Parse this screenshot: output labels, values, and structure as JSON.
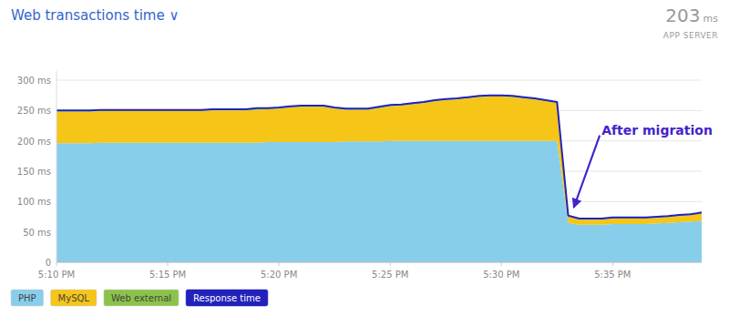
{
  "chart_data": {
    "type": "area",
    "stacked": true,
    "title": "Web transactions time  ∨",
    "note_value": 203,
    "note_unit": "ms",
    "note_label": "APP SERVER",
    "x": [
      0,
      1,
      2,
      3,
      4,
      5,
      6,
      7,
      8,
      9,
      10,
      11,
      12,
      13,
      14,
      15,
      16,
      17,
      18,
      19,
      20,
      21,
      22,
      23,
      24,
      25,
      26,
      27,
      28,
      29,
      30,
      31,
      32,
      33,
      34,
      35,
      36,
      37,
      38,
      39,
      40,
      41,
      42,
      43,
      44,
      45,
      46,
      47,
      48,
      49,
      50,
      51,
      52,
      53,
      54,
      55,
      56,
      57,
      58
    ],
    "xlim": [
      0,
      58
    ],
    "xticks": [
      {
        "value": 0,
        "label": "5:10 PM"
      },
      {
        "value": 10,
        "label": "5:15 PM"
      },
      {
        "value": 20,
        "label": "5:20 PM"
      },
      {
        "value": 30,
        "label": "5:25 PM"
      },
      {
        "value": 40,
        "label": "5:30 PM"
      },
      {
        "value": 50,
        "label": "5:35 PM"
      }
    ],
    "ylim": [
      0,
      315
    ],
    "yticks": [
      0,
      {
        "value": 50,
        "label": "50 ms"
      },
      {
        "value": 100,
        "label": "100 ms"
      },
      {
        "value": 150,
        "label": "150 ms"
      },
      {
        "value": 200,
        "label": "200 ms"
      },
      {
        "value": 250,
        "label": "250 ms"
      },
      {
        "value": 300,
        "label": "300 ms"
      }
    ],
    "grid": true,
    "legend": "bottom",
    "series": [
      {
        "name": "PHP",
        "color": "#87CEEB",
        "values": [
          196,
          196,
          196,
          196,
          197,
          197,
          197,
          197,
          197,
          197,
          197,
          197,
          197,
          197,
          197,
          197,
          197,
          197,
          197,
          198,
          198,
          198,
          198,
          198,
          198,
          198,
          199,
          199,
          199,
          199,
          200,
          200,
          200,
          200,
          200,
          200,
          200,
          200,
          200,
          200,
          200,
          200,
          200,
          200,
          200,
          200,
          65,
          62,
          62,
          62,
          63,
          63,
          63,
          63,
          64,
          65,
          66,
          67,
          68
        ]
      },
      {
        "name": "MySQL",
        "color": "#F5C518",
        "values": [
          52,
          52,
          52,
          52,
          52,
          52,
          52,
          52,
          52,
          52,
          52,
          52,
          52,
          52,
          53,
          53,
          53,
          53,
          54,
          54,
          55,
          57,
          58,
          58,
          58,
          55,
          52,
          52,
          52,
          55,
          57,
          58,
          60,
          62,
          65,
          67,
          68,
          70,
          72,
          73,
          73,
          72,
          70,
          68,
          65,
          62,
          10,
          8,
          8,
          8,
          9,
          9,
          9,
          9,
          9,
          10,
          10,
          11,
          12
        ]
      },
      {
        "name": "Web external",
        "color": "#8BC34A",
        "values": [
          2,
          2,
          2,
          2,
          2,
          2,
          2,
          2,
          2,
          2,
          2,
          2,
          2,
          2,
          2,
          2,
          2,
          2,
          2,
          2,
          2,
          2,
          2,
          2,
          2,
          2,
          2,
          2,
          2,
          2,
          2,
          2,
          2,
          2,
          2,
          2,
          2,
          2,
          2,
          2,
          2,
          2,
          2,
          2,
          2,
          2,
          2,
          2,
          2,
          2,
          2,
          2,
          2,
          2,
          2,
          2,
          2,
          2,
          2
        ]
      },
      {
        "name": "Response time",
        "type": "line",
        "color": "#2222BB",
        "values": [
          250,
          250,
          250,
          250,
          251,
          251,
          251,
          251,
          251,
          251,
          251,
          251,
          251,
          251,
          252,
          252,
          252,
          252,
          254,
          254,
          255,
          257,
          258,
          258,
          258,
          255,
          253,
          253,
          253,
          256,
          259,
          260,
          262,
          264,
          267,
          269,
          270,
          272,
          274,
          275,
          275,
          274,
          272,
          270,
          267,
          264,
          77,
          72,
          72,
          72,
          74,
          74,
          74,
          74,
          75,
          76,
          78,
          79,
          82
        ]
      }
    ],
    "annotations": [
      {
        "text": "After migration",
        "x": 46.5,
        "y": 90,
        "text_x": 49,
        "text_y": 218
      }
    ]
  }
}
